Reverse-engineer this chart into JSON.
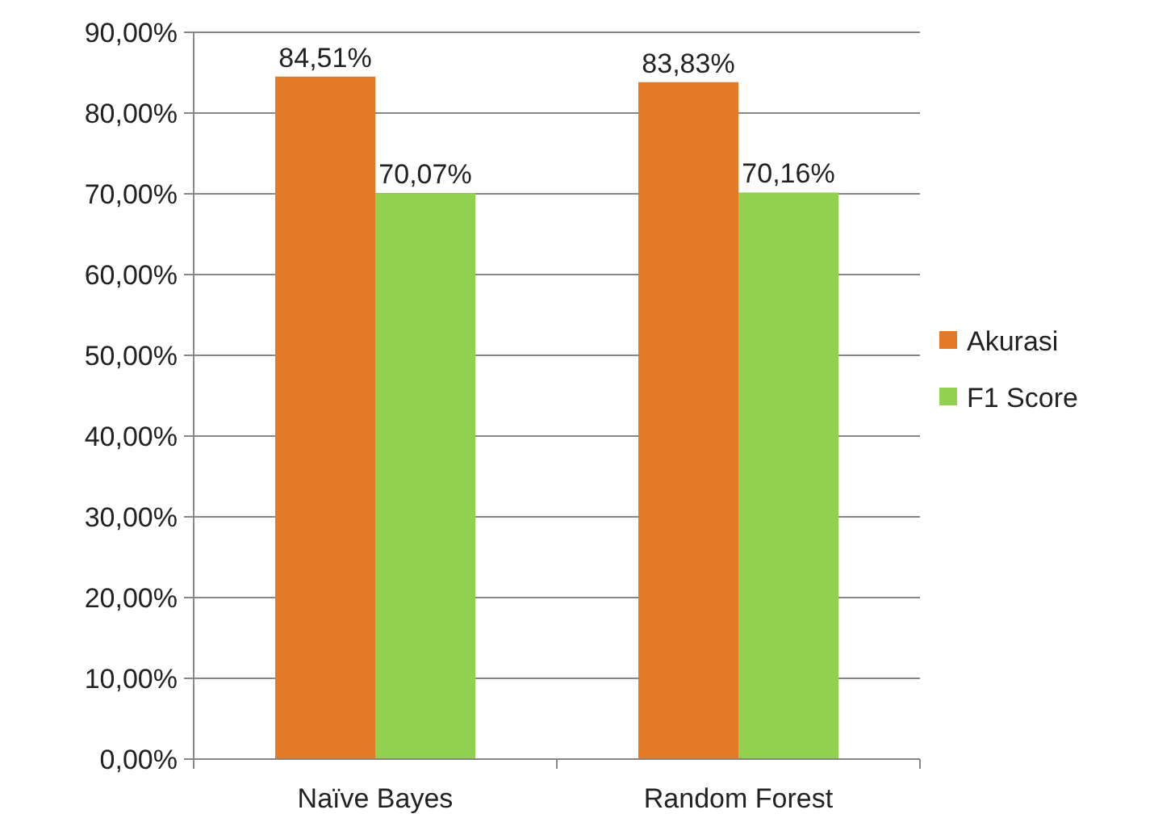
{
  "chart_data": {
    "type": "bar",
    "categories": [
      "Naïve Bayes",
      "Random Forest"
    ],
    "series": [
      {
        "name": "Akurasi",
        "color": "#e47a26",
        "values": [
          84.51,
          83.83
        ],
        "value_labels": [
          "84,51%",
          "83,83%"
        ]
      },
      {
        "name": "F1 Score",
        "color": "#92d050",
        "values": [
          70.07,
          70.16
        ],
        "value_labels": [
          "70,07%",
          "70,16%"
        ]
      }
    ],
    "ylim": [
      0,
      90
    ],
    "yticks": [
      {
        "value": 0,
        "label": "0,00%"
      },
      {
        "value": 10,
        "label": "10,00%"
      },
      {
        "value": 20,
        "label": "20,00%"
      },
      {
        "value": 30,
        "label": "30,00%"
      },
      {
        "value": 40,
        "label": "40,00%"
      },
      {
        "value": 50,
        "label": "50,00%"
      },
      {
        "value": 60,
        "label": "60,00%"
      },
      {
        "value": 70,
        "label": "70,00%"
      },
      {
        "value": 80,
        "label": "80,00%"
      },
      {
        "value": 90,
        "label": "90,00%"
      }
    ],
    "grid": "y",
    "legend": "right"
  }
}
